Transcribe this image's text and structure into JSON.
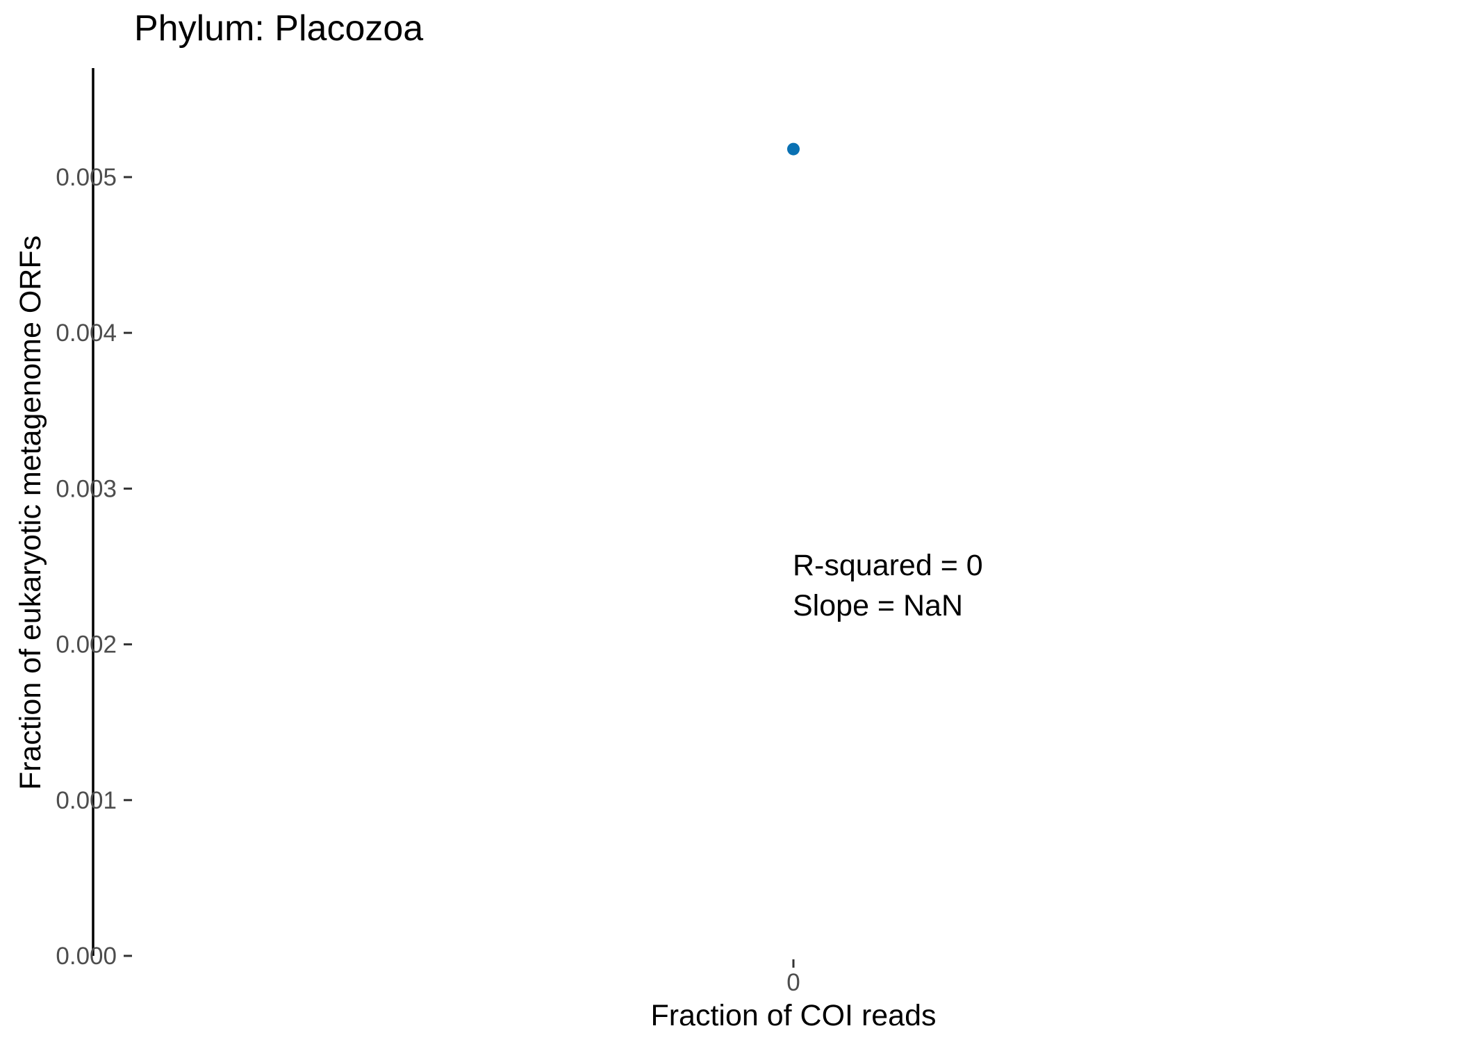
{
  "chart_data": {
    "type": "scatter",
    "title": "Phylum:  Placozoa",
    "xlabel": "Fraction of COI reads",
    "ylabel": "Fraction of eukaryotic metagenome ORFs",
    "x_ticks": [
      "0"
    ],
    "y_ticks": [
      "0.000",
      "0.001",
      "0.002",
      "0.003",
      "0.004",
      "0.005"
    ],
    "ylim": [
      0,
      0.0057
    ],
    "grid": false,
    "points": [
      {
        "x": 0,
        "y": 0.00518
      }
    ],
    "point_color": "#0a71b3",
    "annotation": {
      "r_squared": "R-squared =  0",
      "slope": "Slope =  NaN"
    }
  }
}
